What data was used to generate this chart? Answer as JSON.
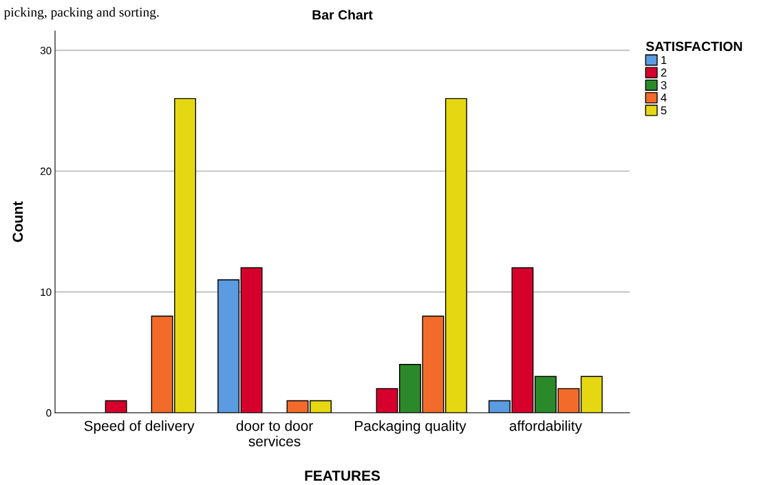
{
  "chart_data": {
    "type": "bar",
    "title": "Bar Chart",
    "xlabel": "FEATURES",
    "ylabel": "Count",
    "categories": [
      "Speed of delivery",
      "door to door\nservices",
      "Packaging quality",
      "affordability"
    ],
    "series": [
      {
        "name": "1",
        "color": "#5b9be0",
        "values": [
          null,
          11,
          null,
          1
        ]
      },
      {
        "name": "2",
        "color": "#d6002d",
        "values": [
          1,
          12,
          2,
          12
        ]
      },
      {
        "name": "3",
        "color": "#2a8a2a",
        "values": [
          null,
          null,
          4,
          3
        ]
      },
      {
        "name": "4",
        "color": "#f26b2a",
        "values": [
          8,
          1,
          8,
          2
        ]
      },
      {
        "name": "5",
        "color": "#e5d812",
        "values": [
          26,
          1,
          26,
          3
        ]
      }
    ],
    "legend_title": "SATISFACTION",
    "legend": "top right",
    "ylim": [
      0,
      31.6
    ],
    "yticks": [
      0,
      10,
      20,
      30
    ],
    "grid": "y",
    "annotations": [
      "picking, packing and sorting."
    ]
  }
}
